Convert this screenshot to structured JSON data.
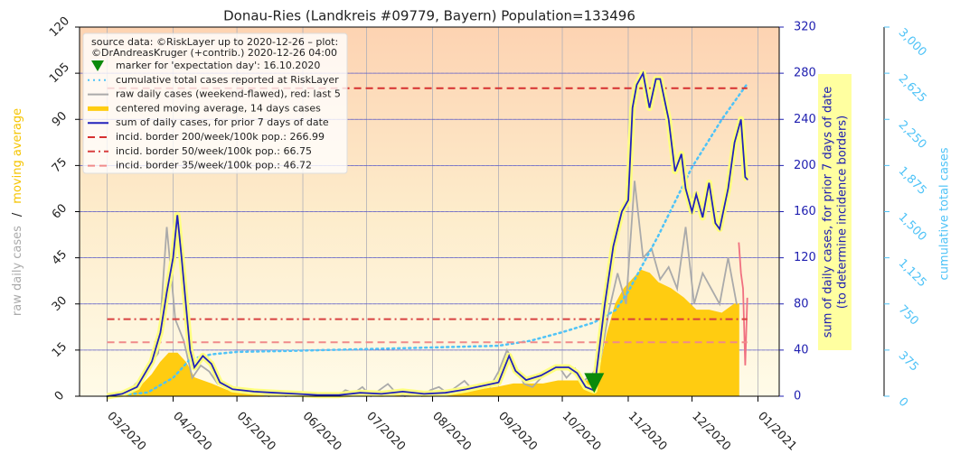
{
  "chart_data": {
    "type": "line",
    "title": "Donau-Ries (Landkreis #09779, Bayern) Population=133496",
    "source_note": [
      "source data: ©RiskLayer up to 2020-12-26 – plot:",
      "©DrAndreasKruger (+contrib.) 2020-12-26 04:00"
    ],
    "ylabel_parts": [
      "raw daily cases",
      "/",
      "moving average"
    ],
    "y2label": [
      "sum of daily cases, for prior 7 days of date",
      "(to determine incidence borders)"
    ],
    "y3label": "cumulative total cases",
    "xlim": [
      48,
      377
    ],
    "xticks": [
      {
        "value": 61,
        "label": "03/2020"
      },
      {
        "value": 92,
        "label": "04/2020"
      },
      {
        "value": 122,
        "label": "05/2020"
      },
      {
        "value": 153,
        "label": "06/2020"
      },
      {
        "value": 183,
        "label": "07/2020"
      },
      {
        "value": 214,
        "label": "08/2020"
      },
      {
        "value": 245,
        "label": "09/2020"
      },
      {
        "value": 275,
        "label": "10/2020"
      },
      {
        "value": 306,
        "label": "11/2020"
      },
      {
        "value": 336,
        "label": "12/2020"
      },
      {
        "value": 367,
        "label": "01/2021"
      }
    ],
    "ylim": [
      0,
      120
    ],
    "yticks": [
      0,
      15,
      30,
      45,
      60,
      75,
      90,
      105,
      120
    ],
    "y2lim": [
      0,
      320
    ],
    "y2ticks": [
      0,
      40,
      80,
      120,
      160,
      200,
      240,
      280,
      320
    ],
    "y3lim": [
      0,
      3000
    ],
    "y3ticks": [
      0,
      375,
      750,
      {
        "value": 1125,
        "label": "1,125"
      },
      {
        "value": 1500,
        "label": "1,500"
      },
      {
        "value": 1875,
        "label": "1,875"
      },
      {
        "value": 2250,
        "label": "2,250"
      },
      {
        "value": 2625,
        "label": "2,625"
      },
      {
        "value": 3000,
        "label": "3,000"
      }
    ],
    "grid": true,
    "marker": {
      "name": "marker for 'expectation day': 16.10.2020",
      "x": 290,
      "y": 4,
      "color": "#0a8a0a"
    },
    "series": [
      {
        "name": "cumulative total cases reported at RiskLayer",
        "color": "#4fc3f7",
        "axis": "y3",
        "style": "dotted",
        "x": [
          61,
          80,
          92,
          100,
          110,
          122,
          150,
          200,
          245,
          260,
          275,
          290,
          300,
          306,
          320,
          336,
          350,
          362
        ],
        "values": [
          0,
          30,
          150,
          300,
          340,
          360,
          370,
          390,
          410,
          450,
          520,
          600,
          700,
          850,
          1300,
          1860,
          2250,
          2540
        ]
      },
      {
        "name": "raw daily cases (weekend-flawed), red: last 5",
        "color": "#aaaaaa",
        "axis": "y",
        "style": "line",
        "highlight_last": 5,
        "highlight_color": "#f07080",
        "x": [
          61,
          65,
          69,
          73,
          77,
          81,
          85,
          89,
          93,
          97,
          101,
          105,
          109,
          113,
          117,
          121,
          125,
          129,
          133,
          137,
          141,
          145,
          149,
          153,
          157,
          161,
          165,
          169,
          173,
          177,
          181,
          185,
          189,
          193,
          197,
          201,
          205,
          209,
          213,
          217,
          221,
          225,
          229,
          233,
          237,
          241,
          245,
          249,
          253,
          257,
          261,
          265,
          269,
          273,
          277,
          281,
          285,
          289,
          293,
          297,
          301,
          305,
          309,
          313,
          317,
          321,
          325,
          329,
          333,
          337,
          341,
          345,
          349,
          353,
          357,
          358,
          359,
          360,
          361,
          362
        ],
        "values": [
          0,
          0,
          1,
          3,
          6,
          10,
          14,
          55,
          25,
          18,
          6,
          10,
          8,
          4,
          3,
          2,
          1,
          2,
          1,
          0,
          1,
          0,
          1,
          0,
          0,
          1,
          0,
          0,
          2,
          1,
          3,
          0,
          2,
          4,
          1,
          0,
          1,
          0,
          2,
          3,
          1,
          3,
          5,
          2,
          4,
          3,
          8,
          15,
          10,
          4,
          3,
          6,
          8,
          10,
          6,
          9,
          5,
          7,
          12,
          28,
          40,
          30,
          70,
          45,
          48,
          38,
          42,
          35,
          55,
          30,
          40,
          35,
          30,
          45,
          30,
          50,
          40,
          35,
          10,
          32
        ]
      },
      {
        "name": "centered moving average, 14 days cases",
        "color": "#ffcc11",
        "axis": "y",
        "style": "area",
        "x": [
          61,
          68,
          75,
          82,
          86,
          90,
          94,
          98,
          102,
          106,
          110,
          117,
          124,
          131,
          145,
          160,
          175,
          190,
          205,
          220,
          235,
          245,
          252,
          259,
          266,
          273,
          280,
          287,
          293,
          296,
          300,
          304,
          308,
          312,
          316,
          320,
          326,
          332,
          338,
          344,
          350,
          356,
          358
        ],
        "values": [
          0,
          0.5,
          2,
          7,
          11,
          14,
          14,
          11,
          6,
          5,
          4,
          2,
          1,
          1,
          0.5,
          0.5,
          0.5,
          1,
          1,
          1,
          2,
          3,
          4,
          4,
          4,
          5,
          5,
          5,
          10,
          20,
          30,
          35,
          38,
          41,
          40,
          37,
          35,
          32,
          28,
          28,
          27,
          30,
          30
        ]
      },
      {
        "name": "sum of daily cases, for prior 7 days of date",
        "color": "#2222bb",
        "axis": "y2",
        "style": "line",
        "halo": "#ffff80",
        "x": [
          61,
          68,
          75,
          82,
          86,
          89,
          92,
          94,
          96,
          98,
          100,
          102,
          106,
          110,
          114,
          120,
          130,
          140,
          150,
          160,
          170,
          180,
          190,
          200,
          210,
          220,
          230,
          240,
          245,
          250,
          253,
          258,
          265,
          272,
          278,
          282,
          286,
          290,
          295,
          299,
          303,
          306,
          308,
          310,
          313,
          316,
          319,
          321,
          325,
          328,
          331,
          333,
          336,
          338,
          341,
          344,
          347,
          349,
          353,
          356,
          359,
          361,
          362
        ],
        "values": [
          0,
          2,
          8,
          30,
          55,
          90,
          120,
          157,
          120,
          80,
          40,
          25,
          35,
          28,
          12,
          6,
          4,
          3,
          2,
          1,
          1,
          3,
          2,
          4,
          2,
          3,
          6,
          10,
          12,
          35,
          22,
          14,
          18,
          25,
          25,
          20,
          8,
          5,
          80,
          130,
          160,
          170,
          250,
          270,
          280,
          250,
          275,
          275,
          240,
          195,
          210,
          180,
          160,
          175,
          155,
          185,
          150,
          145,
          180,
          220,
          240,
          190,
          188
        ]
      }
    ],
    "reference_lines": [
      {
        "name": "incid. border 200/week/100k pop.: 266.99",
        "value": 266.99,
        "axis": "y2",
        "color": "#d63030",
        "style": "dashed"
      },
      {
        "name": "incid. border 50/week/100k pop.: 66.75",
        "value": 66.75,
        "axis": "y2",
        "color": "#d84040",
        "style": "dashdot"
      },
      {
        "name": "incid. border 35/week/100k pop.: 46.72",
        "value": 46.72,
        "axis": "y2",
        "color": "#f08a8a",
        "style": "dashed"
      }
    ]
  }
}
